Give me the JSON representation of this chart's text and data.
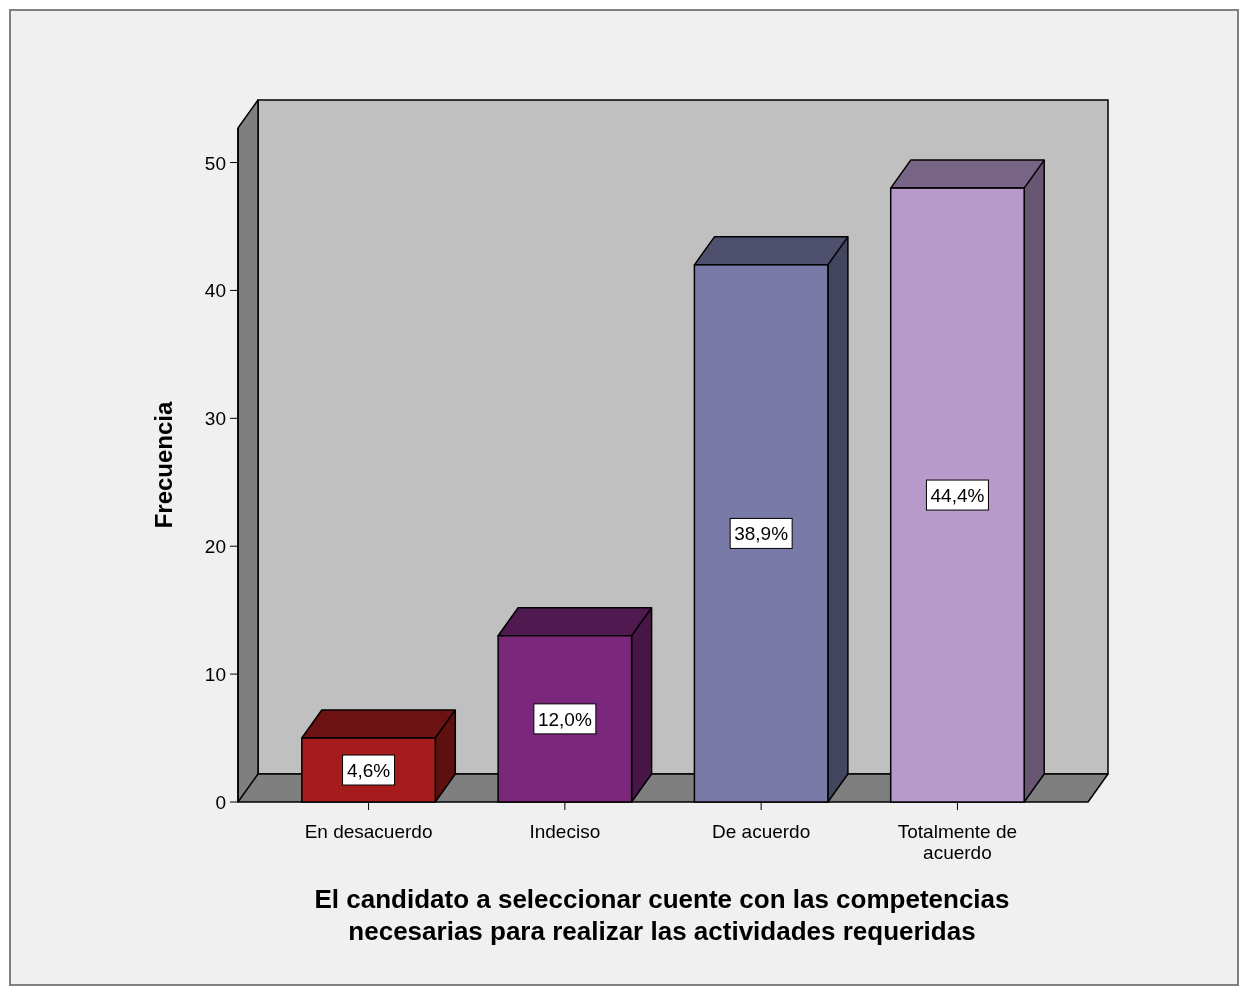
{
  "chart_data": {
    "type": "bar",
    "xlabel": "El candidato a seleccionar cuente con las competencias necesarias para realizar las actividades requeridas",
    "ylabel": "Frecuencia",
    "categories": [
      "En desacuerdo",
      "Indeciso",
      "De acuerdo",
      "Totalmente de acuerdo"
    ],
    "values": [
      5,
      13,
      42,
      48
    ],
    "colors": [
      "#a61c1c",
      "#7b287c",
      "#797aa8",
      "#b89aca"
    ],
    "annotations": [
      "4,6%",
      "12,0%",
      "38,9%",
      "44,4%"
    ],
    "ylim": [
      0,
      52.7
    ],
    "yticks": [
      0,
      10,
      20,
      30,
      40,
      50
    ],
    "grid": false,
    "legend": false
  }
}
